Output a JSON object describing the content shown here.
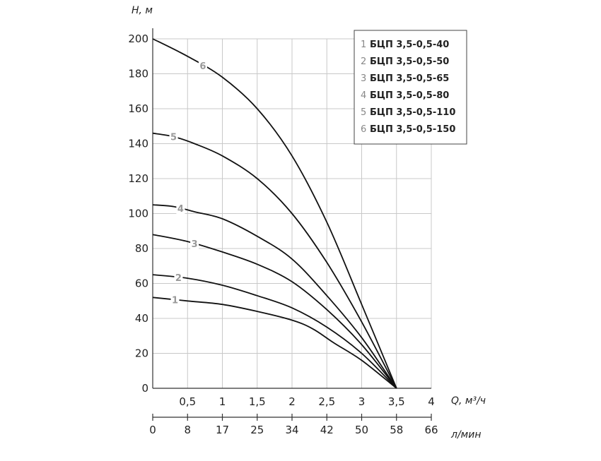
{
  "chart_data": {
    "type": "line",
    "ylabel": "H, м",
    "xlabel": "Q, м³/ч",
    "x2label": "л/мин",
    "xlim": [
      0,
      4
    ],
    "ylim": [
      0,
      200
    ],
    "grid": true,
    "legend_position": "top-right",
    "y_ticks": [
      "0",
      "20",
      "40",
      "60",
      "80",
      "100",
      "120",
      "140",
      "160",
      "180",
      "200"
    ],
    "x_ticks": [
      {
        "v": 0.5,
        "label": "0,5"
      },
      {
        "v": 1,
        "label": "1"
      },
      {
        "v": 1.5,
        "label": "1,5"
      },
      {
        "v": 2,
        "label": "2"
      },
      {
        "v": 2.5,
        "label": "2,5"
      },
      {
        "v": 3,
        "label": "3"
      },
      {
        "v": 3.5,
        "label": "3,5"
      },
      {
        "v": 4,
        "label": "4"
      }
    ],
    "x2_ticks": [
      {
        "v": 0,
        "label": "0"
      },
      {
        "v": 0.5,
        "label": "8"
      },
      {
        "v": 1,
        "label": "17"
      },
      {
        "v": 1.5,
        "label": "25"
      },
      {
        "v": 2,
        "label": "34"
      },
      {
        "v": 2.5,
        "label": "42"
      },
      {
        "v": 3,
        "label": "50"
      },
      {
        "v": 3.5,
        "label": "58"
      },
      {
        "v": 4,
        "label": "66"
      }
    ],
    "series": [
      {
        "num": "1",
        "name": "БЦП 3,5-0,5-40",
        "label_at": 0.32,
        "points": [
          [
            0,
            52
          ],
          [
            0.5,
            50
          ],
          [
            1,
            48
          ],
          [
            1.5,
            44
          ],
          [
            2,
            39
          ],
          [
            2.3,
            34
          ],
          [
            2.6,
            26
          ],
          [
            3,
            16
          ],
          [
            3.5,
            0
          ]
        ]
      },
      {
        "num": "2",
        "name": "БЦП 3,5-0,5-50",
        "label_at": 0.37,
        "points": [
          [
            0,
            65
          ],
          [
            0.5,
            63
          ],
          [
            1,
            59
          ],
          [
            1.5,
            53
          ],
          [
            2,
            46
          ],
          [
            2.5,
            35
          ],
          [
            3,
            20
          ],
          [
            3.5,
            0
          ]
        ]
      },
      {
        "num": "3",
        "name": "БЦП 3,5-0,5-65",
        "label_at": 0.6,
        "points": [
          [
            0,
            88
          ],
          [
            0.5,
            84
          ],
          [
            1,
            78
          ],
          [
            1.5,
            71
          ],
          [
            2,
            61
          ],
          [
            2.5,
            45
          ],
          [
            3,
            25
          ],
          [
            3.5,
            0
          ]
        ]
      },
      {
        "num": "4",
        "name": "БЦП 3,5-0,5-80",
        "label_at": 0.4,
        "points": [
          [
            0,
            105
          ],
          [
            0.3,
            104
          ],
          [
            0.6,
            101
          ],
          [
            1,
            97
          ],
          [
            1.5,
            87
          ],
          [
            2,
            74
          ],
          [
            2.5,
            53
          ],
          [
            3,
            29
          ],
          [
            3.5,
            0
          ]
        ]
      },
      {
        "num": "5",
        "name": "БЦП 3,5-0,5-110",
        "label_at": 0.3,
        "points": [
          [
            0,
            146
          ],
          [
            0.3,
            144
          ],
          [
            0.6,
            140
          ],
          [
            1,
            133
          ],
          [
            1.5,
            120
          ],
          [
            2,
            100
          ],
          [
            2.5,
            72
          ],
          [
            3,
            38
          ],
          [
            3.5,
            0
          ]
        ]
      },
      {
        "num": "6",
        "name": "БЦП 3,5-0,5-150",
        "label_at": 0.72,
        "points": [
          [
            0,
            200
          ],
          [
            0.5,
            190
          ],
          [
            1,
            178
          ],
          [
            1.5,
            160
          ],
          [
            2,
            133
          ],
          [
            2.5,
            95
          ],
          [
            3,
            48
          ],
          [
            3.5,
            0
          ]
        ]
      }
    ]
  }
}
